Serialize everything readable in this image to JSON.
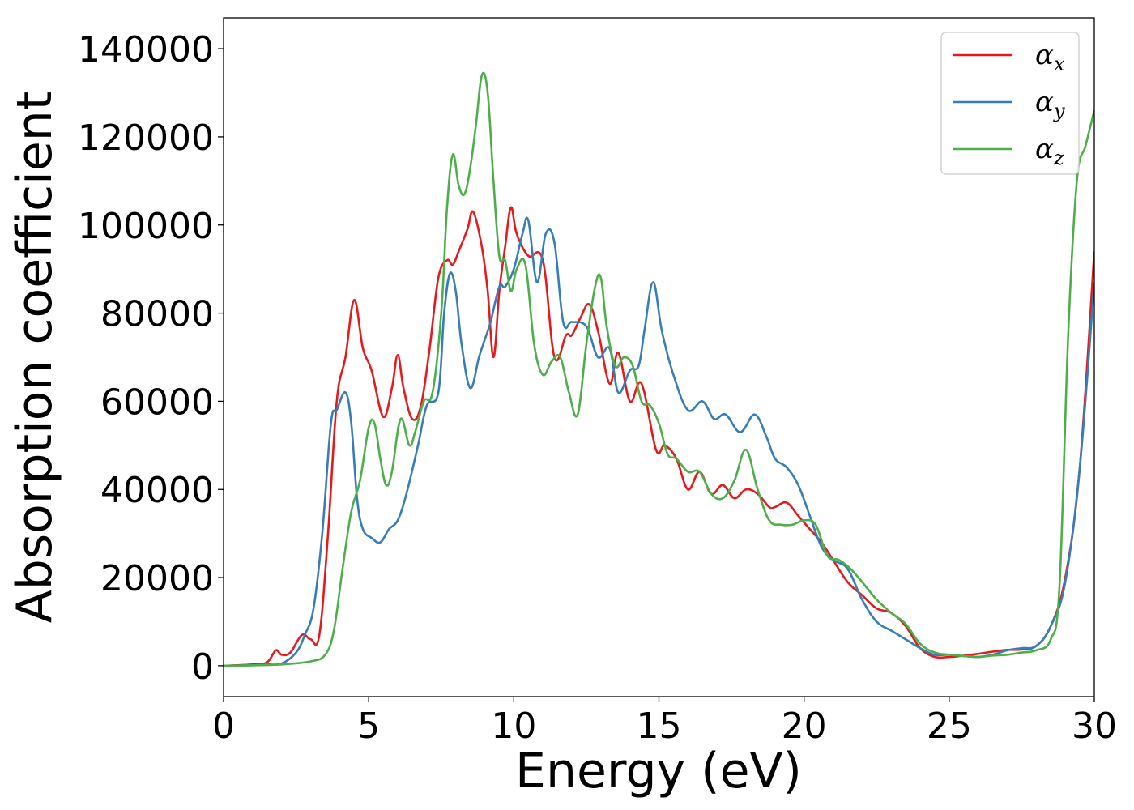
{
  "chart_data": {
    "type": "line",
    "title": "",
    "xlabel": "Energy (eV)",
    "ylabel": "Absorption coefficient",
    "xlim": [
      0,
      30
    ],
    "ylim": [
      -7000,
      147000
    ],
    "xticks": [
      0,
      5,
      10,
      15,
      20,
      25,
      30
    ],
    "yticks": [
      0,
      20000,
      40000,
      60000,
      80000,
      100000,
      120000,
      140000
    ],
    "grid": false,
    "legend_position": "top-right",
    "series": [
      {
        "name": "αx",
        "legend_symbol": "α",
        "legend_subscript": "x",
        "color": "#e41a1c",
        "x": [
          0,
          1,
          1.5,
          1.8,
          2.0,
          2.3,
          2.7,
          3.0,
          3.3,
          3.6,
          3.9,
          4.2,
          4.5,
          4.8,
          5.1,
          5.5,
          5.8,
          6.0,
          6.2,
          6.5,
          6.8,
          7.1,
          7.4,
          7.7,
          7.9,
          8.1,
          8.4,
          8.6,
          8.9,
          9.1,
          9.3,
          9.5,
          9.7,
          9.9,
          10.1,
          10.5,
          11.0,
          11.4,
          11.8,
          12.0,
          12.3,
          12.6,
          12.9,
          13.3,
          13.6,
          14.0,
          14.4,
          14.9,
          15.2,
          15.6,
          16.0,
          16.4,
          16.8,
          17.2,
          17.6,
          18.0,
          18.4,
          18.8,
          19.0,
          19.4,
          19.8,
          20.2,
          20.6,
          21.0,
          21.5,
          22.0,
          22.5,
          23.0,
          23.5,
          24.0,
          24.5,
          25.0,
          25.5,
          26.0,
          26.5,
          27.0,
          27.5,
          28.0,
          28.5,
          29.0,
          29.5,
          30.0
        ],
        "y": [
          0,
          300,
          800,
          3500,
          2500,
          3000,
          7000,
          6000,
          7000,
          30000,
          60000,
          70000,
          83000,
          72000,
          67000,
          56500,
          63000,
          70500,
          63000,
          56000,
          59000,
          72000,
          88000,
          92000,
          91000,
          94000,
          99000,
          103000,
          95000,
          85000,
          70000,
          85000,
          95000,
          104000,
          98000,
          93000,
          92000,
          70000,
          75000,
          75000,
          79000,
          82000,
          76000,
          64000,
          71000,
          60000,
          64000,
          49000,
          50000,
          47000,
          40000,
          44000,
          39000,
          41000,
          38000,
          40000,
          39000,
          36000,
          36000,
          37000,
          34000,
          31000,
          28000,
          24000,
          19000,
          16000,
          13000,
          12000,
          9000,
          4000,
          2000,
          2000,
          2300,
          2700,
          3200,
          3600,
          3700,
          4500,
          9000,
          20000,
          45000,
          94000
        ]
      },
      {
        "name": "αy",
        "legend_symbol": "α",
        "legend_subscript": "y",
        "color": "#377eb8",
        "x": [
          0,
          1,
          1.5,
          2.0,
          2.5,
          2.8,
          3.1,
          3.4,
          3.7,
          3.9,
          4.2,
          4.4,
          4.6,
          4.8,
          5.1,
          5.4,
          5.7,
          6.0,
          6.3,
          6.7,
          7.0,
          7.4,
          7.6,
          7.8,
          8.0,
          8.2,
          8.5,
          8.8,
          9.0,
          9.2,
          9.5,
          9.7,
          10.0,
          10.3,
          10.5,
          10.8,
          11.1,
          11.4,
          11.7,
          12.0,
          12.5,
          12.9,
          13.3,
          13.6,
          14.0,
          14.3,
          14.5,
          14.8,
          15.1,
          15.5,
          16.0,
          16.5,
          16.9,
          17.3,
          17.8,
          18.3,
          18.7,
          19.0,
          19.4,
          19.8,
          20.2,
          20.6,
          21.0,
          21.5,
          22.0,
          22.5,
          23.0,
          23.5,
          24.0,
          24.5,
          25.0,
          25.5,
          26.0,
          26.5,
          27.0,
          27.5,
          28.0,
          28.5,
          29.0,
          29.5,
          30.0
        ],
        "y": [
          0,
          100,
          300,
          500,
          3000,
          7000,
          13000,
          30000,
          55000,
          58000,
          62000,
          55000,
          38000,
          31000,
          29000,
          28000,
          31000,
          33000,
          39000,
          50000,
          59000,
          62000,
          80000,
          89000,
          85000,
          73000,
          63000,
          70000,
          74000,
          78000,
          86000,
          86000,
          90000,
          98000,
          101000,
          87000,
          98000,
          96000,
          78000,
          78000,
          77000,
          70000,
          72000,
          62000,
          67000,
          68000,
          76000,
          87000,
          76000,
          66000,
          58000,
          60000,
          56000,
          57000,
          53000,
          57000,
          52000,
          47000,
          45000,
          41000,
          34000,
          27000,
          24000,
          22000,
          15000,
          10000,
          8000,
          6000,
          4000,
          2500,
          2500,
          2200,
          2000,
          2500,
          3500,
          4000,
          4500,
          9000,
          19000,
          45000,
          87000
        ]
      },
      {
        "name": "αz",
        "legend_symbol": "α",
        "legend_subscript": "z",
        "color": "#4daf4a",
        "x": [
          0,
          1,
          2,
          3,
          3.5,
          3.8,
          4.1,
          4.4,
          4.7,
          5.0,
          5.2,
          5.4,
          5.6,
          5.8,
          6.1,
          6.4,
          6.6,
          6.9,
          7.2,
          7.5,
          7.7,
          7.9,
          8.1,
          8.3,
          8.5,
          8.7,
          8.9,
          9.1,
          9.3,
          9.5,
          9.7,
          9.9,
          10.1,
          10.4,
          10.7,
          11.0,
          11.3,
          11.6,
          11.9,
          12.2,
          12.5,
          12.8,
          13.0,
          13.2,
          13.5,
          13.8,
          14.1,
          14.4,
          14.7,
          15.0,
          15.3,
          15.6,
          16.0,
          16.4,
          16.8,
          17.2,
          17.6,
          18.0,
          18.4,
          18.8,
          19.2,
          19.6,
          20.0,
          20.4,
          20.8,
          21.2,
          21.6,
          22.0,
          22.5,
          23.0,
          23.5,
          24.0,
          24.5,
          25.0,
          25.5,
          26.0,
          26.5,
          27.0,
          27.5,
          28.0,
          28.5,
          28.8,
          29.1,
          29.4,
          29.7,
          30.0
        ],
        "y": [
          0,
          100,
          300,
          1000,
          2500,
          8000,
          22000,
          35000,
          42000,
          54000,
          55000,
          47000,
          41000,
          44000,
          56000,
          50000,
          53000,
          60000,
          62000,
          80000,
          104000,
          116000,
          109000,
          107000,
          113000,
          123000,
          134000,
          130000,
          110000,
          93000,
          92000,
          85000,
          90000,
          91000,
          73000,
          66000,
          69000,
          70000,
          62000,
          57000,
          73000,
          86000,
          88000,
          77000,
          68000,
          70000,
          68000,
          60000,
          59000,
          55000,
          48000,
          47000,
          44000,
          44000,
          39000,
          38000,
          42000,
          49000,
          40000,
          33000,
          32000,
          32000,
          33000,
          32000,
          25000,
          24000,
          22000,
          19000,
          15000,
          12000,
          9500,
          5000,
          3000,
          2500,
          2200,
          2000,
          2300,
          2500,
          3000,
          3500,
          6000,
          18000,
          75000,
          110000,
          118000,
          126000
        ]
      }
    ]
  }
}
